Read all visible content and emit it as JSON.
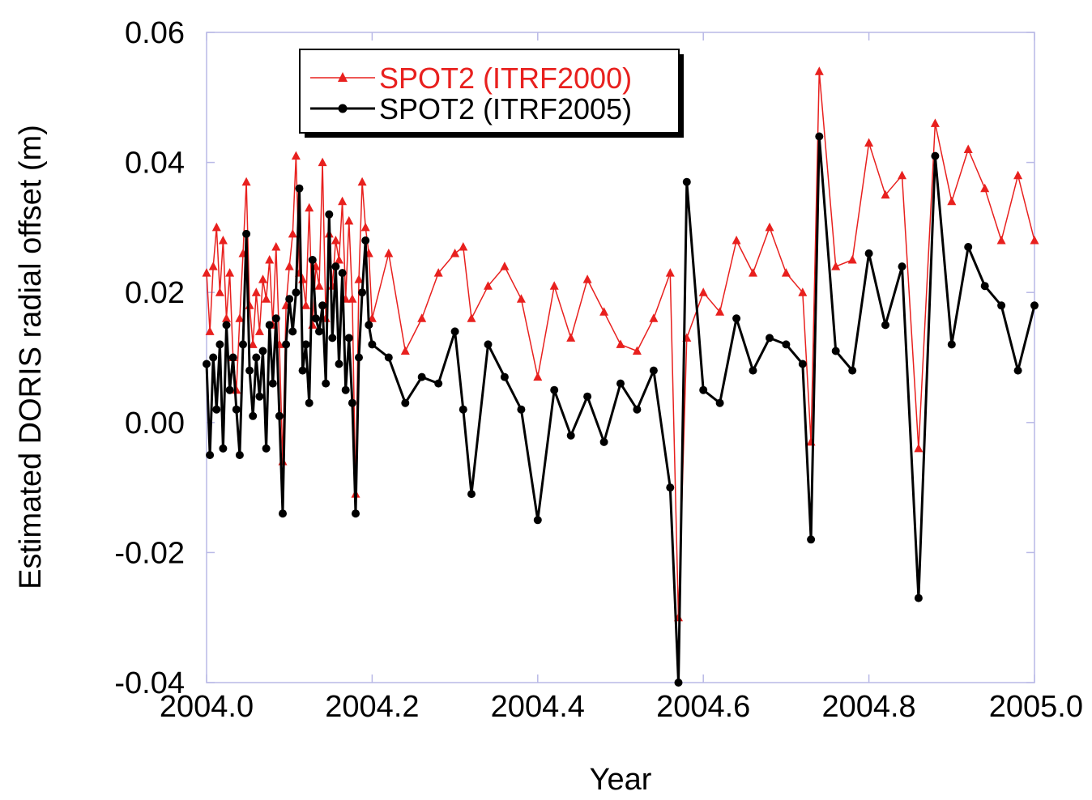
{
  "chart_data": {
    "type": "line",
    "title": "",
    "xlabel": "Year",
    "ylabel": "Estimated DORIS radial offset (m)",
    "xlim": [
      2004.0,
      2005.0
    ],
    "ylim": [
      -0.04,
      0.06
    ],
    "x_ticks": [
      "2004.0",
      "2004.2",
      "2004.4",
      "2004.6",
      "2004.8",
      "2005.0"
    ],
    "y_ticks": [
      "-0.04",
      "-0.02",
      "0.00",
      "0.02",
      "0.04",
      "0.06"
    ],
    "grid": false,
    "legend_position": "top-left",
    "series": [
      {
        "name": "SPOT2 (ITRF2000)",
        "color": "#e8201e",
        "marker": "triangle",
        "x": [
          2004.0,
          2004.004,
          2004.008,
          2004.012,
          2004.016,
          2004.02,
          2004.024,
          2004.028,
          2004.032,
          2004.036,
          2004.04,
          2004.044,
          2004.048,
          2004.052,
          2004.056,
          2004.06,
          2004.064,
          2004.068,
          2004.072,
          2004.076,
          2004.08,
          2004.084,
          2004.088,
          2004.092,
          2004.096,
          2004.1,
          2004.104,
          2004.108,
          2004.112,
          2004.116,
          2004.12,
          2004.124,
          2004.128,
          2004.132,
          2004.136,
          2004.14,
          2004.144,
          2004.148,
          2004.152,
          2004.156,
          2004.16,
          2004.164,
          2004.168,
          2004.172,
          2004.176,
          2004.18,
          2004.184,
          2004.188,
          2004.192,
          2004.196,
          2004.2,
          2004.22,
          2004.24,
          2004.26,
          2004.28,
          2004.3,
          2004.31,
          2004.32,
          2004.34,
          2004.36,
          2004.38,
          2004.4,
          2004.42,
          2004.44,
          2004.46,
          2004.48,
          2004.5,
          2004.52,
          2004.54,
          2004.56,
          2004.57,
          2004.58,
          2004.6,
          2004.62,
          2004.64,
          2004.66,
          2004.68,
          2004.7,
          2004.72,
          2004.73,
          2004.74,
          2004.76,
          2004.78,
          2004.8,
          2004.82,
          2004.84,
          2004.86,
          2004.88,
          2004.9,
          2004.92,
          2004.94,
          2004.96,
          2004.98,
          2005.0
        ],
        "y": [
          0.023,
          0.014,
          0.024,
          0.03,
          0.02,
          0.028,
          0.016,
          0.023,
          0.01,
          0.005,
          0.016,
          0.026,
          0.037,
          0.018,
          0.012,
          0.02,
          0.014,
          0.022,
          0.019,
          0.025,
          0.015,
          0.027,
          0.012,
          -0.006,
          0.018,
          0.024,
          0.029,
          0.041,
          0.023,
          0.022,
          0.018,
          0.033,
          0.015,
          0.024,
          0.021,
          0.04,
          0.016,
          0.029,
          0.021,
          0.028,
          0.025,
          0.034,
          0.019,
          0.031,
          0.019,
          -0.011,
          0.022,
          0.037,
          0.03,
          0.026,
          0.016,
          0.026,
          0.011,
          0.016,
          0.023,
          0.026,
          0.027,
          0.016,
          0.021,
          0.024,
          0.019,
          0.007,
          0.021,
          0.013,
          0.022,
          0.017,
          0.012,
          0.011,
          0.016,
          0.023,
          -0.03,
          0.013,
          0.02,
          0.017,
          0.028,
          0.023,
          0.03,
          0.023,
          0.02,
          -0.003,
          0.054,
          0.024,
          0.025,
          0.043,
          0.035,
          0.038,
          -0.004,
          0.046,
          0.034,
          0.042,
          0.036,
          0.028,
          0.038,
          0.028
        ]
      },
      {
        "name": "SPOT2 (ITRF2005)",
        "color": "#000000",
        "marker": "circle",
        "x": [
          2004.0,
          2004.004,
          2004.008,
          2004.012,
          2004.016,
          2004.02,
          2004.024,
          2004.028,
          2004.032,
          2004.036,
          2004.04,
          2004.044,
          2004.048,
          2004.052,
          2004.056,
          2004.06,
          2004.064,
          2004.068,
          2004.072,
          2004.076,
          2004.08,
          2004.084,
          2004.088,
          2004.092,
          2004.096,
          2004.1,
          2004.104,
          2004.108,
          2004.112,
          2004.116,
          2004.12,
          2004.124,
          2004.128,
          2004.132,
          2004.136,
          2004.14,
          2004.144,
          2004.148,
          2004.152,
          2004.156,
          2004.16,
          2004.164,
          2004.168,
          2004.172,
          2004.176,
          2004.18,
          2004.184,
          2004.188,
          2004.192,
          2004.196,
          2004.2,
          2004.22,
          2004.24,
          2004.26,
          2004.28,
          2004.3,
          2004.31,
          2004.32,
          2004.34,
          2004.36,
          2004.38,
          2004.4,
          2004.42,
          2004.44,
          2004.46,
          2004.48,
          2004.5,
          2004.52,
          2004.54,
          2004.56,
          2004.57,
          2004.58,
          2004.6,
          2004.62,
          2004.64,
          2004.66,
          2004.68,
          2004.7,
          2004.72,
          2004.73,
          2004.74,
          2004.76,
          2004.78,
          2004.8,
          2004.82,
          2004.84,
          2004.86,
          2004.88,
          2004.9,
          2004.92,
          2004.94,
          2004.96,
          2004.98,
          2005.0
        ],
        "y": [
          0.009,
          -0.005,
          0.01,
          0.002,
          0.012,
          -0.004,
          0.015,
          0.005,
          0.01,
          0.002,
          -0.005,
          0.012,
          0.029,
          0.008,
          0.001,
          0.01,
          0.004,
          0.011,
          -0.004,
          0.015,
          0.006,
          0.016,
          0.001,
          -0.014,
          0.012,
          0.019,
          0.014,
          0.02,
          0.036,
          0.008,
          0.012,
          0.003,
          0.025,
          0.016,
          0.014,
          0.018,
          0.006,
          0.032,
          0.013,
          0.024,
          0.009,
          0.023,
          0.005,
          0.013,
          0.003,
          -0.014,
          0.01,
          0.02,
          0.028,
          0.015,
          0.012,
          0.01,
          0.003,
          0.007,
          0.006,
          0.014,
          0.002,
          -0.011,
          0.012,
          0.007,
          0.002,
          -0.015,
          0.005,
          -0.002,
          0.004,
          -0.003,
          0.006,
          0.002,
          0.008,
          -0.01,
          -0.04,
          0.037,
          0.005,
          0.003,
          0.016,
          0.008,
          0.013,
          0.012,
          0.009,
          -0.018,
          0.044,
          0.011,
          0.008,
          0.026,
          0.015,
          0.024,
          -0.027,
          0.041,
          0.012,
          0.027,
          0.021,
          0.018,
          0.008,
          0.018
        ]
      }
    ]
  }
}
